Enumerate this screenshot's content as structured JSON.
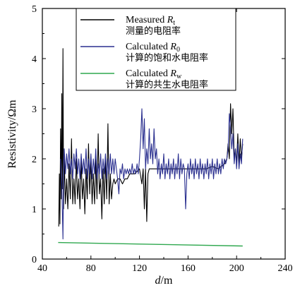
{
  "chart_data": {
    "type": "line",
    "xlabel": {
      "italic": "d",
      "suffix": "/m"
    },
    "ylabel": "Resistivity/Ωm",
    "xlim": [
      40,
      240
    ],
    "ylim": [
      0,
      5
    ],
    "x_ticks": [
      "40",
      "80",
      "120",
      "160",
      "200",
      "240"
    ],
    "y_ticks": [
      "0",
      "1",
      "2",
      "3",
      "4",
      "5"
    ],
    "x_tick_values": [
      40,
      80,
      120,
      160,
      200,
      240
    ],
    "y_tick_values": [
      0,
      1,
      2,
      3,
      4,
      5
    ],
    "legend_position": "top-right",
    "series": [
      {
        "legend_en": "Measured",
        "legend_symbol": "R",
        "legend_sub": "t",
        "legend_cn": "测量的电阻率",
        "color": "#000000",
        "points": [
          [
            53.5,
            0.65
          ],
          [
            54,
            1.7
          ],
          [
            54.5,
            0.7
          ],
          [
            55,
            2.6
          ],
          [
            55.5,
            1.2
          ],
          [
            56,
            3.3
          ],
          [
            56.5,
            1.4
          ],
          [
            57,
            4.2
          ],
          [
            57.5,
            1.0
          ],
          [
            58,
            2.0
          ],
          [
            59,
            1.1
          ],
          [
            60,
            1.6
          ],
          [
            61,
            1.0
          ],
          [
            62,
            1.9
          ],
          [
            63,
            1.2
          ],
          [
            64,
            2.4
          ],
          [
            65,
            1.1
          ],
          [
            66,
            1.6
          ],
          [
            67,
            1.1
          ],
          [
            68,
            2.0
          ],
          [
            69,
            1.2
          ],
          [
            70,
            1.6
          ],
          [
            71,
            1.0
          ],
          [
            72,
            2.0
          ],
          [
            73,
            1.2
          ],
          [
            74,
            1.6
          ],
          [
            75,
            0.9
          ],
          [
            76,
            1.8
          ],
          [
            77,
            1.2
          ],
          [
            78,
            2.3
          ],
          [
            79,
            1.3
          ],
          [
            80,
            2.0
          ],
          [
            81,
            1.1
          ],
          [
            82,
            1.7
          ],
          [
            83,
            1.1
          ],
          [
            84,
            2.0
          ],
          [
            85,
            1.2
          ],
          [
            86,
            2.5
          ],
          [
            87,
            1.3
          ],
          [
            88,
            1.6
          ],
          [
            89,
            0.8
          ],
          [
            90,
            1.8
          ],
          [
            91,
            1.1
          ],
          [
            92,
            2.0
          ],
          [
            93,
            1.2
          ],
          [
            94,
            2.7
          ],
          [
            95,
            1.1
          ],
          [
            96,
            1.7
          ],
          [
            97,
            1.2
          ],
          [
            98,
            1.5
          ],
          [
            99,
            1.6
          ],
          [
            100,
            1.5
          ],
          [
            102,
            1.6
          ],
          [
            104,
            1.6
          ],
          [
            106,
            1.5
          ],
          [
            108,
            1.6
          ],
          [
            110,
            1.6
          ],
          [
            112,
            1.7
          ],
          [
            114,
            1.7
          ],
          [
            116,
            1.7
          ],
          [
            118,
            1.75
          ],
          [
            120,
            1.8
          ],
          [
            122,
            1.5
          ],
          [
            123,
            1.8
          ],
          [
            124,
            1.0
          ],
          [
            125,
            1.8
          ],
          [
            126,
            0.75
          ],
          [
            127,
            1.7
          ],
          [
            128,
            1.8
          ],
          [
            130,
            1.8
          ],
          [
            135,
            1.8
          ],
          [
            140,
            1.8
          ],
          [
            145,
            1.8
          ],
          [
            150,
            1.8
          ],
          [
            155,
            1.8
          ],
          [
            160,
            1.8
          ],
          [
            165,
            1.8
          ],
          [
            170,
            1.8
          ],
          [
            175,
            1.8
          ],
          [
            180,
            1.85
          ],
          [
            185,
            1.8
          ],
          [
            190,
            1.9
          ],
          [
            192,
            2.0
          ],
          [
            193,
            2.3
          ],
          [
            194,
            2.0
          ],
          [
            195,
            3.1
          ],
          [
            196,
            2.5
          ],
          [
            197,
            3.0
          ],
          [
            198,
            2.0
          ],
          [
            199,
            2.2
          ],
          [
            200,
            1.9
          ],
          [
            201,
            2.5
          ],
          [
            202,
            1.9
          ],
          [
            203,
            2.4
          ],
          [
            204,
            2.0
          ],
          [
            205,
            2.3
          ]
        ]
      },
      {
        "legend_en": "Calculated",
        "legend_symbol": "R",
        "legend_sub": "0",
        "legend_cn": "计算的饱和水电阻率",
        "color": "#2a2f8f",
        "points": [
          [
            55,
            2.0
          ],
          [
            56,
            1.5
          ],
          [
            57,
            0.4
          ],
          [
            57.5,
            1.8
          ],
          [
            58,
            2.2
          ],
          [
            59,
            1.7
          ],
          [
            60,
            2.1
          ],
          [
            61,
            1.8
          ],
          [
            62,
            2.2
          ],
          [
            63,
            1.7
          ],
          [
            64,
            2.0
          ],
          [
            65,
            1.6
          ],
          [
            66,
            2.1
          ],
          [
            67,
            1.8
          ],
          [
            68,
            2.2
          ],
          [
            69,
            1.7
          ],
          [
            70,
            2.0
          ],
          [
            71,
            1.6
          ],
          [
            72,
            2.1
          ],
          [
            73,
            1.7
          ],
          [
            74,
            2.0
          ],
          [
            75,
            1.7
          ],
          [
            76,
            2.2
          ],
          [
            77,
            1.6
          ],
          [
            78,
            2.0
          ],
          [
            79,
            1.7
          ],
          [
            80,
            2.1
          ],
          [
            81,
            1.6
          ],
          [
            82,
            2.0
          ],
          [
            83,
            1.7
          ],
          [
            84,
            2.2
          ],
          [
            85,
            1.6
          ],
          [
            86,
            1.9
          ],
          [
            87,
            1.7
          ],
          [
            88,
            2.1
          ],
          [
            89,
            1.6
          ],
          [
            90,
            2.0
          ],
          [
            91,
            1.7
          ],
          [
            92,
            2.1
          ],
          [
            93,
            1.6
          ],
          [
            94,
            2.0
          ],
          [
            95,
            1.7
          ],
          [
            96,
            2.1
          ],
          [
            97,
            1.7
          ],
          [
            98,
            2.0
          ],
          [
            99,
            1.7
          ],
          [
            100,
            2.0
          ],
          [
            101,
            1.8
          ],
          [
            102,
            1.6
          ],
          [
            103,
            1.3
          ],
          [
            104,
            1.8
          ],
          [
            105,
            1.7
          ],
          [
            106,
            1.9
          ],
          [
            107,
            1.6
          ],
          [
            108,
            1.8
          ],
          [
            109,
            1.7
          ],
          [
            110,
            1.8
          ],
          [
            111,
            1.7
          ],
          [
            112,
            1.8
          ],
          [
            113,
            1.7
          ],
          [
            114,
            1.9
          ],
          [
            115,
            1.7
          ],
          [
            116,
            1.8
          ],
          [
            117,
            1.7
          ],
          [
            118,
            1.9
          ],
          [
            119,
            1.7
          ],
          [
            120,
            2.0
          ],
          [
            121,
            2.4
          ],
          [
            122,
            3.0
          ],
          [
            123,
            2.2
          ],
          [
            124,
            2.8
          ],
          [
            125,
            1.8
          ],
          [
            126,
            2.2
          ],
          [
            127,
            1.9
          ],
          [
            128,
            2.6
          ],
          [
            129,
            2.0
          ],
          [
            130,
            2.3
          ],
          [
            131,
            1.9
          ],
          [
            132,
            2.6
          ],
          [
            133,
            2.0
          ],
          [
            134,
            2.2
          ],
          [
            135,
            1.7
          ],
          [
            136,
            2.0
          ],
          [
            137,
            1.6
          ],
          [
            138,
            1.9
          ],
          [
            139,
            1.7
          ],
          [
            140,
            2.1
          ],
          [
            141,
            1.6
          ],
          [
            142,
            1.9
          ],
          [
            143,
            1.7
          ],
          [
            144,
            2.0
          ],
          [
            145,
            1.6
          ],
          [
            146,
            1.9
          ],
          [
            147,
            1.7
          ],
          [
            148,
            2.0
          ],
          [
            149,
            1.6
          ],
          [
            150,
            1.9
          ],
          [
            151,
            1.7
          ],
          [
            152,
            2.1
          ],
          [
            153,
            1.6
          ],
          [
            154,
            2.0
          ],
          [
            155,
            1.7
          ],
          [
            156,
            1.9
          ],
          [
            157,
            1.8
          ],
          [
            158,
            1.0
          ],
          [
            159,
            1.7
          ],
          [
            160,
            1.9
          ],
          [
            161,
            1.6
          ],
          [
            162,
            2.0
          ],
          [
            163,
            1.7
          ],
          [
            164,
            1.9
          ],
          [
            165,
            1.6
          ],
          [
            166,
            2.0
          ],
          [
            167,
            1.7
          ],
          [
            168,
            1.9
          ],
          [
            169,
            1.6
          ],
          [
            170,
            2.0
          ],
          [
            171,
            1.7
          ],
          [
            172,
            1.9
          ],
          [
            173,
            1.6
          ],
          [
            174,
            1.9
          ],
          [
            175,
            1.7
          ],
          [
            176,
            2.0
          ],
          [
            177,
            1.6
          ],
          [
            178,
            1.9
          ],
          [
            179,
            1.7
          ],
          [
            180,
            2.0
          ],
          [
            181,
            1.6
          ],
          [
            182,
            1.9
          ],
          [
            183,
            1.7
          ],
          [
            184,
            2.0
          ],
          [
            185,
            1.7
          ],
          [
            186,
            1.9
          ],
          [
            187,
            1.7
          ],
          [
            188,
            2.0
          ],
          [
            189,
            1.8
          ],
          [
            190,
            2.0
          ],
          [
            191,
            1.9
          ],
          [
            192,
            2.0
          ],
          [
            193,
            2.2
          ],
          [
            194,
            2.9
          ],
          [
            195,
            2.6
          ],
          [
            196,
            2.2
          ],
          [
            197,
            2.5
          ],
          [
            198,
            1.9
          ],
          [
            199,
            2.2
          ],
          [
            200,
            1.8
          ],
          [
            201,
            2.3
          ],
          [
            202,
            1.8
          ],
          [
            203,
            2.1
          ],
          [
            204,
            1.9
          ],
          [
            205,
            2.4
          ]
        ]
      },
      {
        "legend_en": "Calculated",
        "legend_symbol": "R",
        "legend_sub": "w",
        "legend_cn": "计算的共生水电阻率",
        "color": "#2fa84f",
        "points": [
          [
            53,
            0.33
          ],
          [
            205,
            0.26
          ]
        ]
      }
    ]
  }
}
